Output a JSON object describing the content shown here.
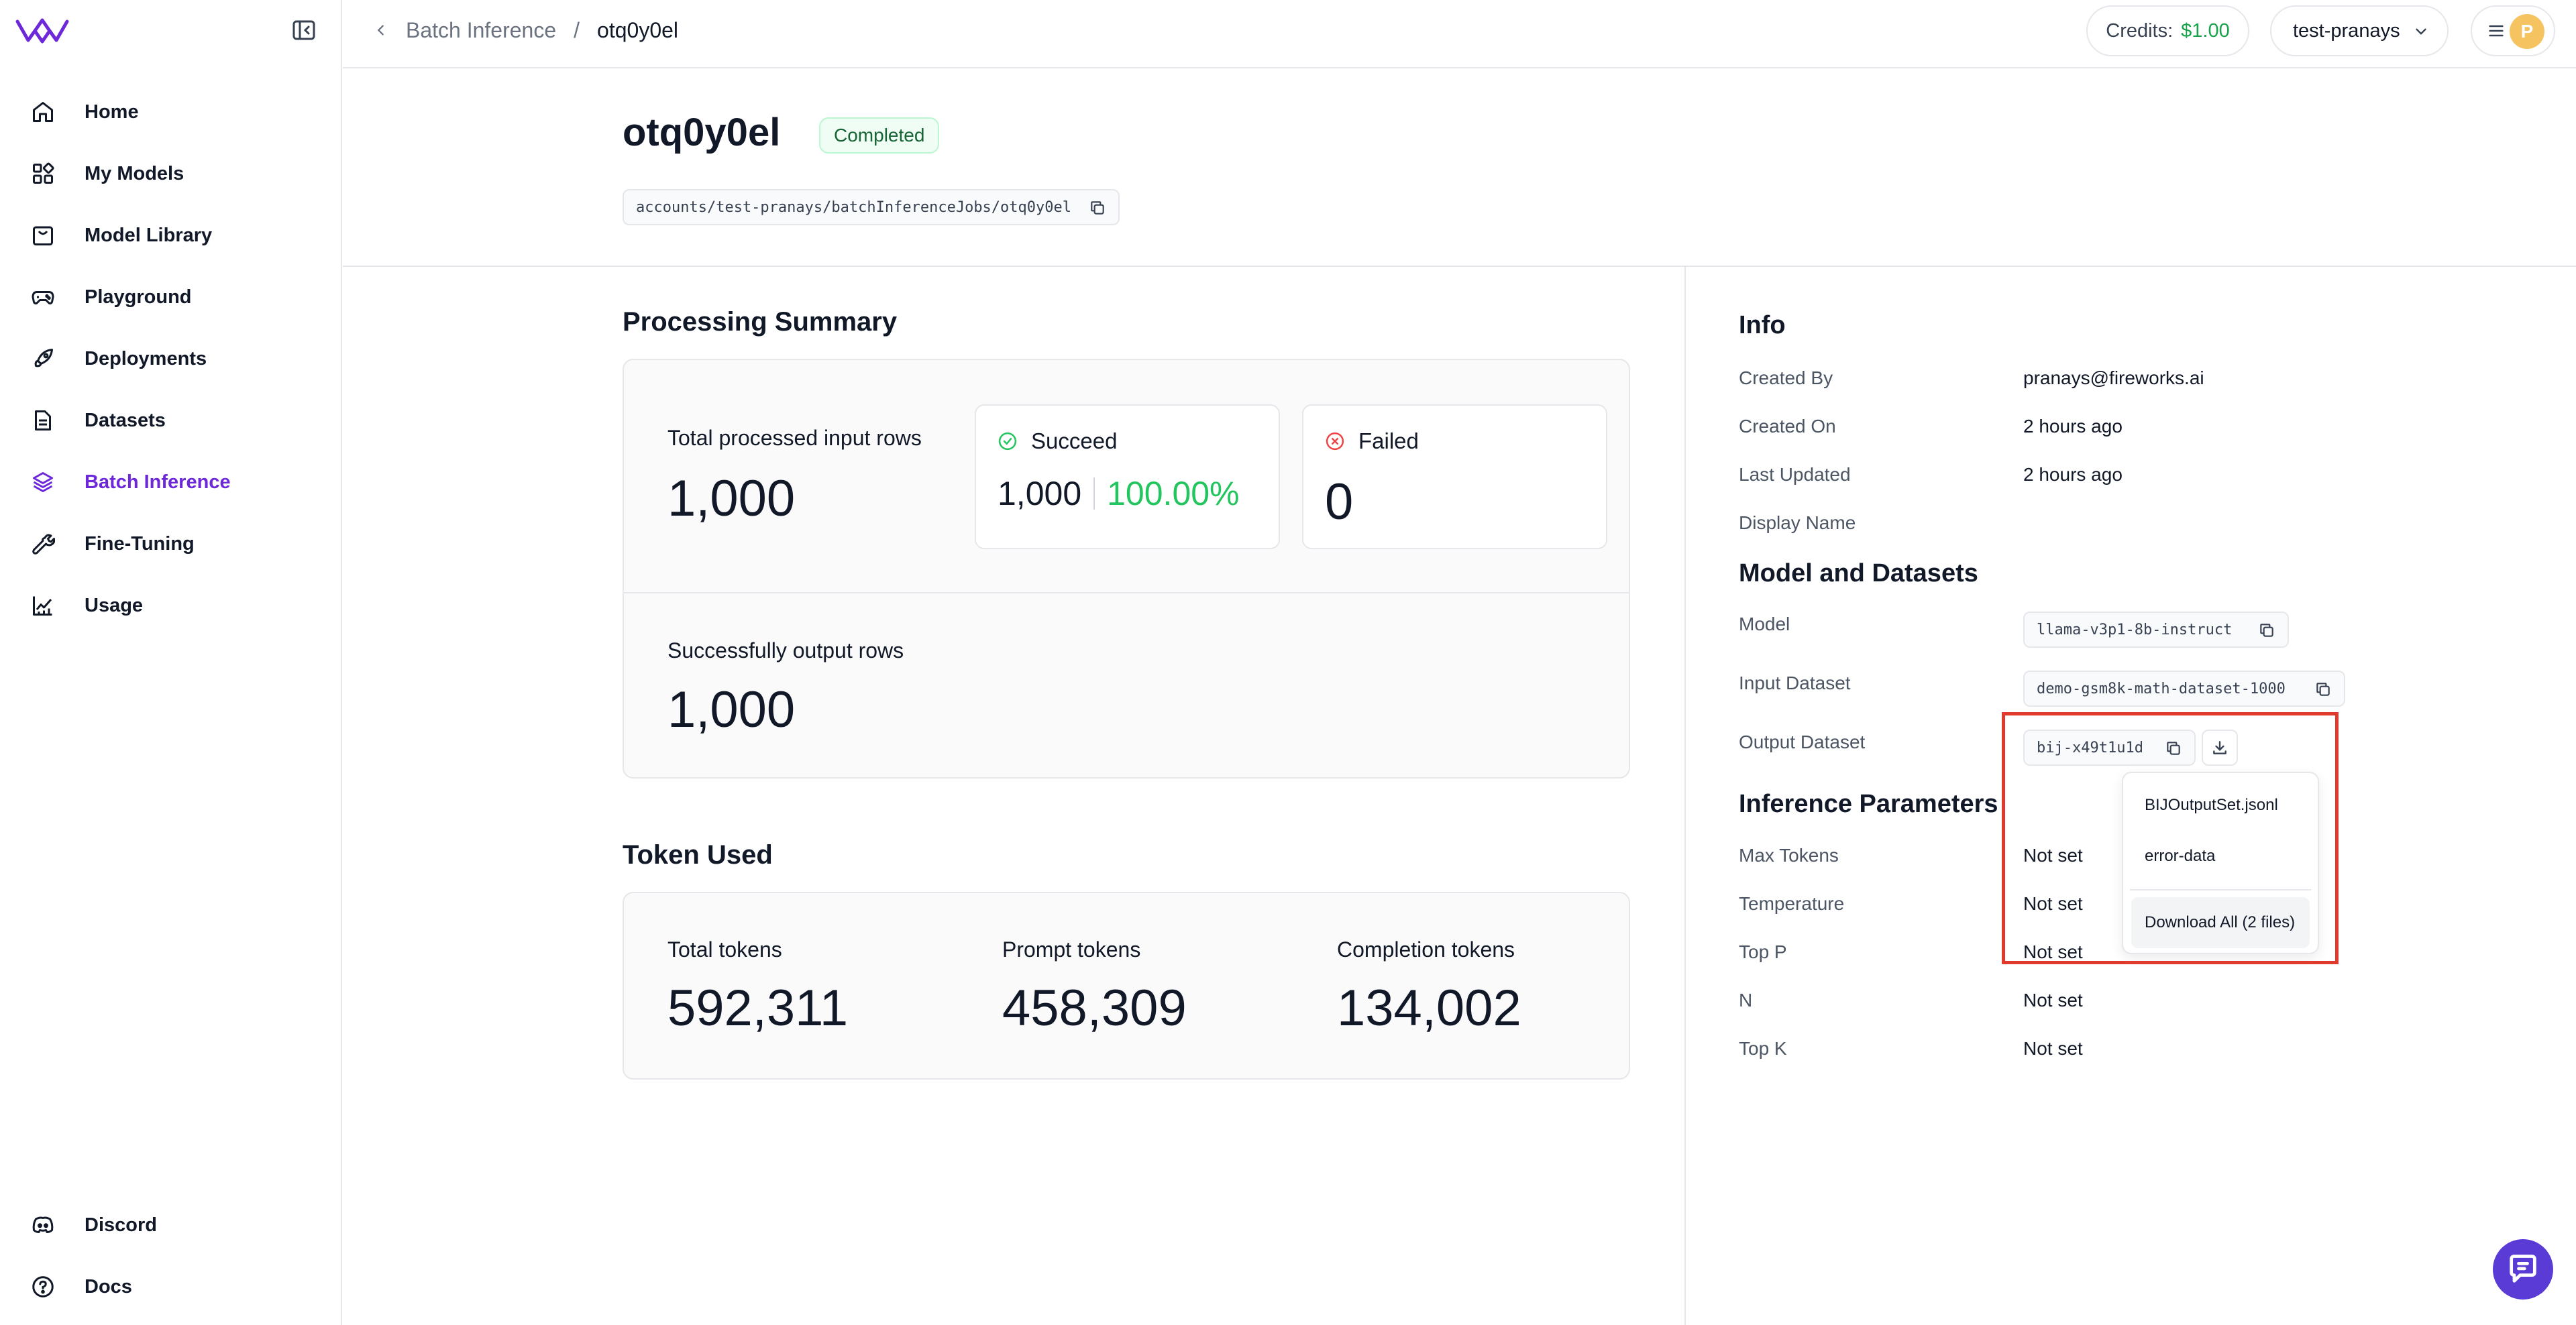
{
  "colors": {
    "brand": "#6d28d9",
    "success": "#22c55e",
    "credits": "#16a34a",
    "highlight": "#e03a2f",
    "avatar": "#f6c361"
  },
  "sidebar": {
    "items": [
      {
        "label": "Home",
        "icon": "home-icon"
      },
      {
        "label": "My Models",
        "icon": "models-icon"
      },
      {
        "label": "Model Library",
        "icon": "library-icon"
      },
      {
        "label": "Playground",
        "icon": "gamepad-icon"
      },
      {
        "label": "Deployments",
        "icon": "rocket-icon"
      },
      {
        "label": "Datasets",
        "icon": "document-icon"
      },
      {
        "label": "Batch Inference",
        "icon": "layers-icon",
        "active": true
      },
      {
        "label": "Fine-Tuning",
        "icon": "wrench-icon"
      },
      {
        "label": "Usage",
        "icon": "chart-icon"
      }
    ],
    "bottom": [
      {
        "label": "Discord",
        "icon": "discord-icon"
      },
      {
        "label": "Docs",
        "icon": "help-icon"
      }
    ]
  },
  "topbar": {
    "breadcrumb_parent": "Batch Inference",
    "breadcrumb_sep": "/",
    "breadcrumb_current": "otq0y0el",
    "credits_label": "Credits:",
    "credits_value": "$1.00",
    "account": "test-pranays",
    "avatar_initial": "P"
  },
  "header": {
    "title": "otq0y0el",
    "status": "Completed",
    "resource_path": "accounts/test-pranays/batchInferenceJobs/otq0y0el"
  },
  "processing": {
    "title": "Processing Summary",
    "total_label": "Total processed input rows",
    "total_value": "1,000",
    "succeed_label": "Succeed",
    "succeed_value": "1,000",
    "succeed_pct": "100.00%",
    "failed_label": "Failed",
    "failed_value": "0",
    "output_label": "Successfully output rows",
    "output_value": "1,000"
  },
  "tokens": {
    "title": "Token Used",
    "total_label": "Total tokens",
    "total_value": "592,311",
    "prompt_label": "Prompt tokens",
    "prompt_value": "458,309",
    "completion_label": "Completion tokens",
    "completion_value": "134,002"
  },
  "info": {
    "title": "Info",
    "created_by_label": "Created By",
    "created_by": "pranays@fireworks.ai",
    "created_on_label": "Created On",
    "created_on": "2 hours ago",
    "updated_label": "Last Updated",
    "updated": "2 hours ago",
    "display_name_label": "Display Name"
  },
  "model_datasets": {
    "title": "Model and Datasets",
    "model_label": "Model",
    "model": "llama-v3p1-8b-instruct",
    "input_label": "Input Dataset",
    "input": "demo-gsm8k-math-dataset-1000",
    "output_label": "Output Dataset",
    "output": "bij-x49t1u1d"
  },
  "dropdown": {
    "file1": "BIJOutputSet.jsonl",
    "file2": "error-data",
    "download_all": "Download All (2 files)"
  },
  "params": {
    "title": "Inference Parameters",
    "max_tokens_label": "Max Tokens",
    "max_tokens": "Not set",
    "temperature_label": "Temperature",
    "temperature": "Not set",
    "top_p_label": "Top P",
    "top_p": "Not set",
    "n_label": "N",
    "n": "Not set",
    "top_k_label": "Top K",
    "top_k": "Not set"
  }
}
